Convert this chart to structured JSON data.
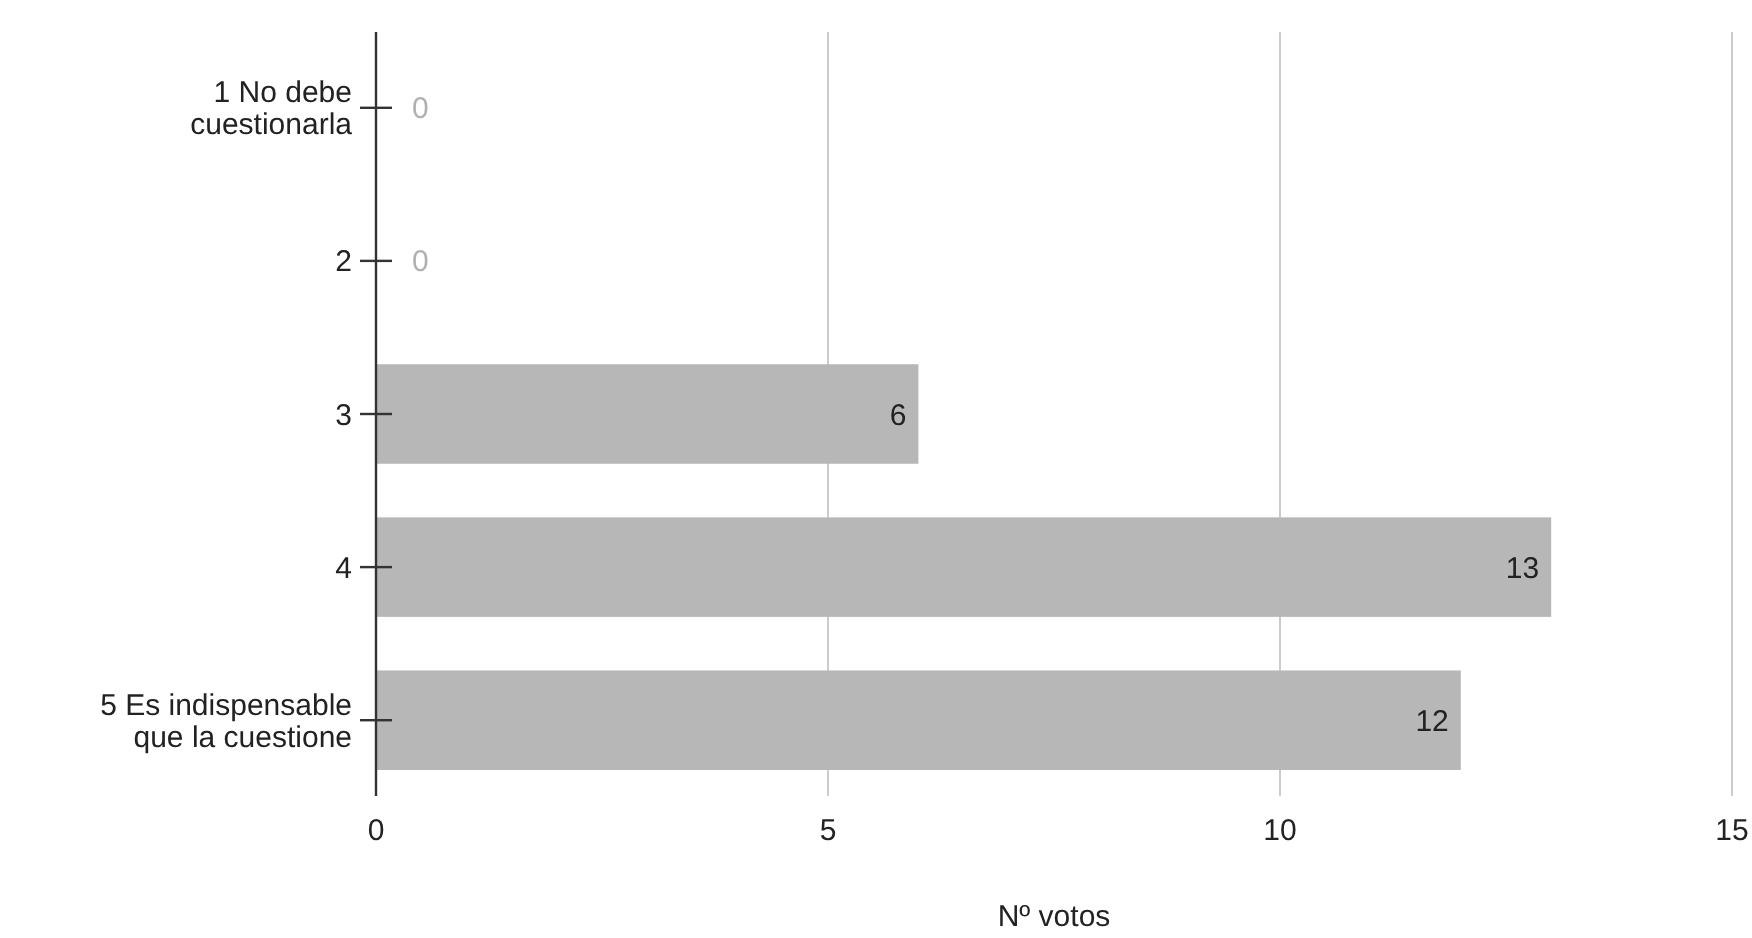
{
  "chart_data": {
    "type": "bar",
    "orientation": "horizontal",
    "categories": [
      "1 No debe cuestionarla",
      "2",
      "3",
      "4",
      "5 Es indispensable que la cuestione"
    ],
    "values": [
      0,
      0,
      6,
      13,
      12
    ],
    "color": "#b7b7b7",
    "xlabel": "Nº votos",
    "xlim": [
      0,
      15
    ],
    "xticks": [
      0,
      5,
      10,
      15
    ],
    "grid": "x",
    "data_labels": true
  }
}
